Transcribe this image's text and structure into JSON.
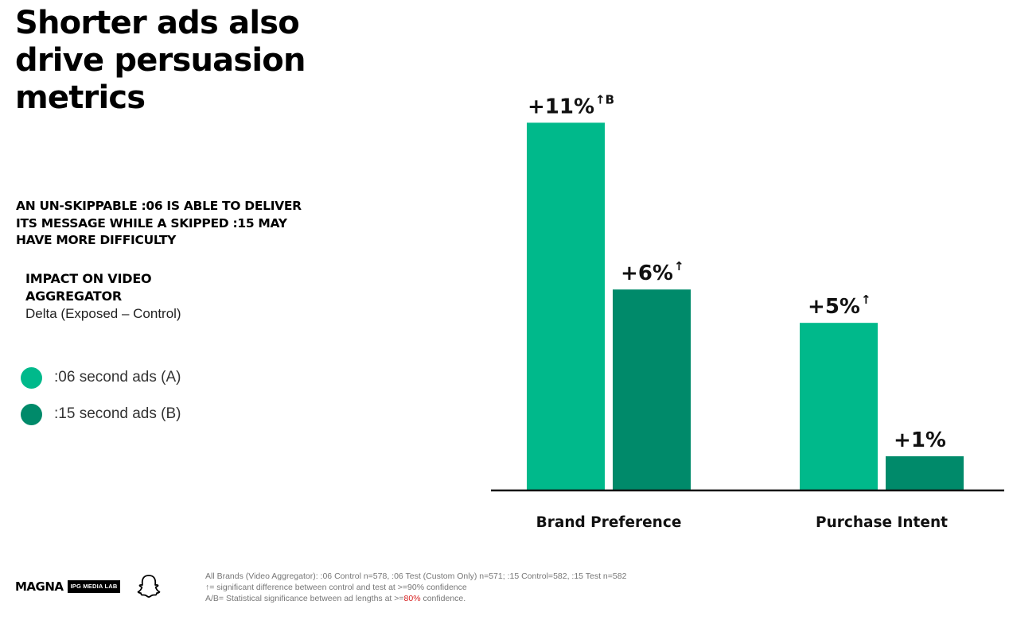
{
  "title": "Shorter ads also drive persuasion metrics",
  "subhead": "AN UN-SKIPPABLE :06 IS ABLE TO DELIVER ITS MESSAGE WHILE A SKIPPED :15 MAY HAVE MORE DIFFICULTY",
  "panel": {
    "label": "IMPACT ON VIDEO AGGREGATOR",
    "sublabel": "Delta (Exposed – Control)"
  },
  "colors": {
    "series_a": "#00b98b",
    "series_b": "#008a6a"
  },
  "chart_data": {
    "type": "bar",
    "categories": [
      "Brand Preference",
      "Purchase Intent"
    ],
    "series": [
      {
        "name": ":06 second ads (A)",
        "values": [
          11,
          5
        ],
        "labels": [
          "+11%",
          "+5%"
        ],
        "marks": [
          "↑B",
          "↑"
        ]
      },
      {
        "name": ":15 second ads (B)",
        "values": [
          6,
          1
        ],
        "labels": [
          "+6%",
          "+1%"
        ],
        "marks": [
          "↑",
          ""
        ]
      }
    ],
    "ylim": [
      0,
      11.2
    ],
    "grid": false,
    "legend": "left"
  },
  "logos": {
    "magna": "MAGNA",
    "ipg": "IPG MEDIA LAB",
    "snapchat": "snapchat-ghost-icon"
  },
  "footnote": {
    "line1": "All Brands (Video Aggregator): :06 Control n=578, :06 Test (Custom Only) n=571; :15 Control=582, :15 Test n=582",
    "line2": "↑= significant difference between control and test at >=90% confidence",
    "line3_pre": "A/B= Statistical significance between ad lengths at >=",
    "line3_red": "80%",
    "line3_post": " confidence."
  }
}
